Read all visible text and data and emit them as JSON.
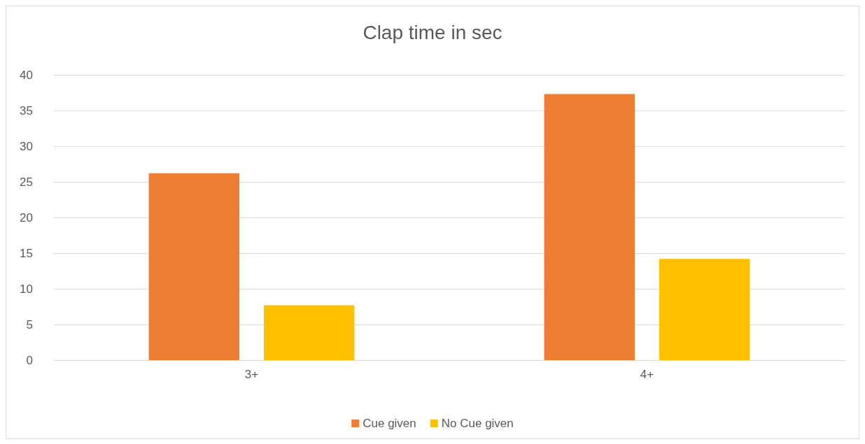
{
  "chart_data": {
    "type": "bar",
    "title": "Clap time in sec",
    "categories": [
      "3+",
      "4+"
    ],
    "series": [
      {
        "name": "Cue given",
        "color": "#ed7d31",
        "values": [
          26.2,
          37.3
        ]
      },
      {
        "name": "No Cue given",
        "color": "#ffc000",
        "values": [
          7.7,
          14.2
        ]
      }
    ],
    "ylim": [
      0,
      40
    ],
    "yticks": [
      0,
      5,
      10,
      15,
      20,
      25,
      30,
      35,
      40
    ],
    "grid": "y",
    "legend": "bottom"
  }
}
